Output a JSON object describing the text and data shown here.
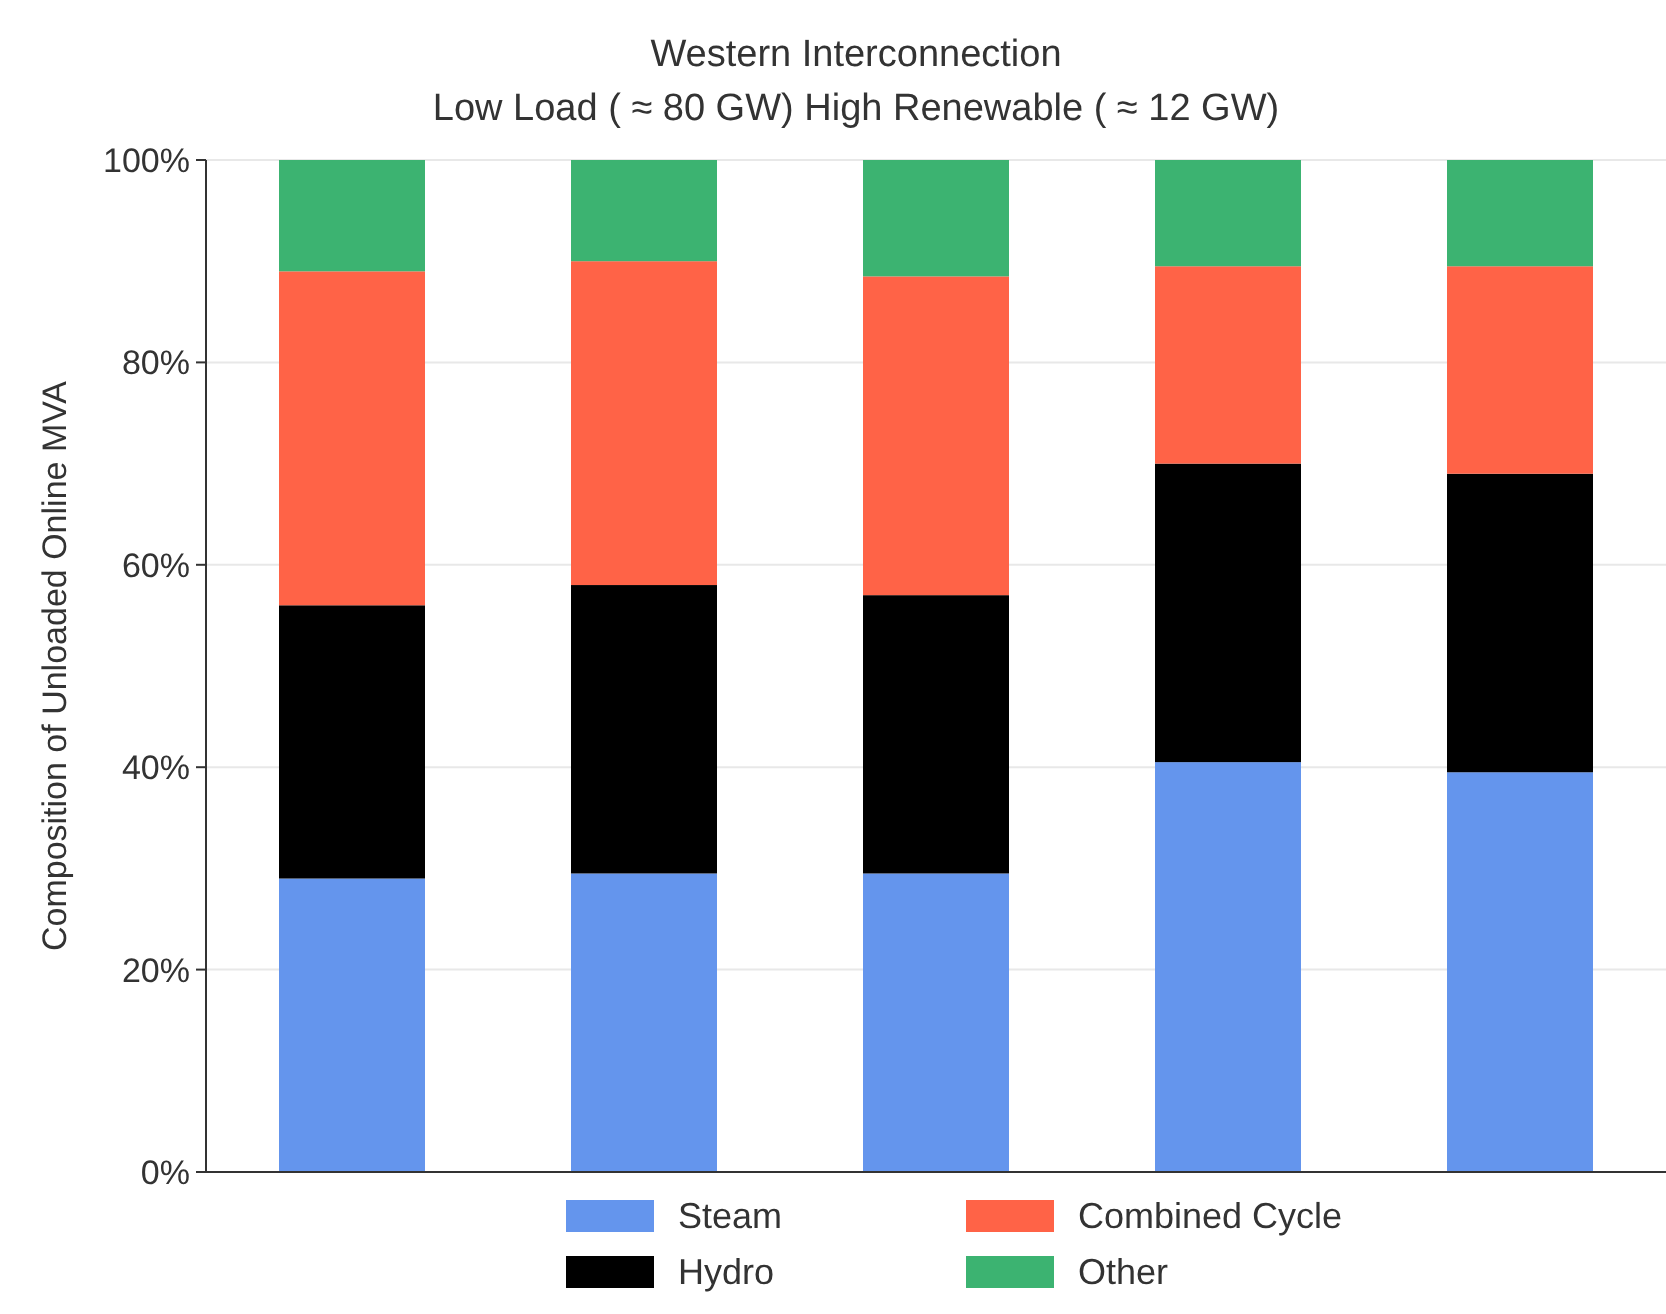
{
  "chart_data": {
    "type": "bar",
    "title": "Western Interconnection",
    "subtitle": "Low Load ( ≈ 80 GW) High Renewable ( ≈ 12 GW)",
    "ylabel": "Composition of Unloaded Online MVA",
    "categories": [
      null,
      null,
      null,
      null,
      null
    ],
    "stacked": true,
    "series": [
      {
        "name": "Steam",
        "color": "#6495ed",
        "values": [
          29,
          29.5,
          29.5,
          40.5,
          39.5
        ]
      },
      {
        "name": "Hydro",
        "color": "#000000",
        "values": [
          27,
          28.5,
          27.5,
          29.5,
          29.5
        ]
      },
      {
        "name": "Combined Cycle",
        "color": "#ff6347",
        "values": [
          33,
          32,
          31.5,
          19.5,
          20.5
        ]
      },
      {
        "name": "Other",
        "color": "#3cb371",
        "values": [
          11,
          10,
          11.5,
          10.5,
          10.5
        ]
      }
    ],
    "ylim": [
      0,
      100
    ],
    "yticks": [
      {
        "value": 0,
        "label": "0%"
      },
      {
        "value": 20,
        "label": "20%"
      },
      {
        "value": 40,
        "label": "40%"
      },
      {
        "value": 60,
        "label": "60%"
      },
      {
        "value": 80,
        "label": "80%"
      },
      {
        "value": 100,
        "label": "100%"
      }
    ],
    "grid": "y",
    "legend": "bottom"
  }
}
